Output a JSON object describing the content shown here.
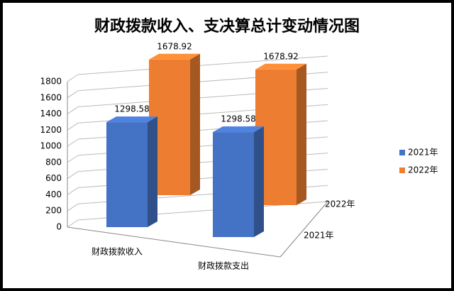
{
  "chart_data": {
    "type": "bar3d",
    "title": "财政拨款收入、支决算总计变动情况图",
    "categories": [
      "财政拨款收入",
      "财政拨款支出"
    ],
    "series": [
      {
        "name": "2021年",
        "color": "#4472c4",
        "values": [
          1298.58,
          1298.58
        ]
      },
      {
        "name": "2022年",
        "color": "#ed7d31",
        "values": [
          1678.92,
          1678.92
        ]
      }
    ],
    "ylim": [
      0,
      1800
    ],
    "yticks": [
      0,
      200,
      400,
      600,
      800,
      1000,
      1200,
      1400,
      1600,
      1800
    ],
    "grid": true,
    "legend": "right"
  }
}
